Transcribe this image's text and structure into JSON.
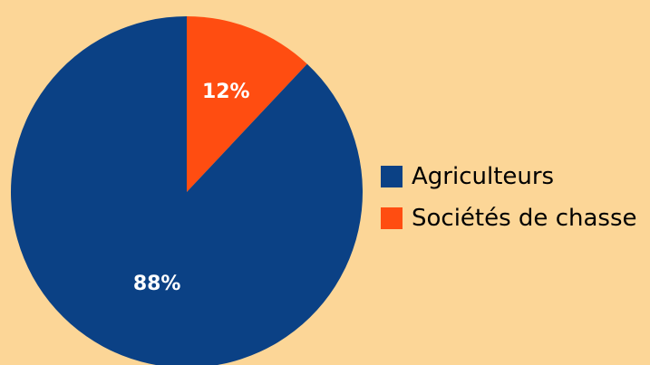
{
  "chart_data": {
    "type": "pie",
    "title": "",
    "categories": [
      "Agriculteurs",
      "Sociétés de chasse"
    ],
    "values": [
      88,
      12
    ],
    "data_labels": [
      "88%",
      "12%"
    ],
    "colors": [
      "#0B4185",
      "#FF4D11"
    ],
    "start_angle": "12 o'clock",
    "direction": "clockwise, Sociétés de chasse first",
    "legend_position": "right"
  },
  "legend": {
    "items": [
      {
        "label": "Agriculteurs",
        "color": "#0B4185"
      },
      {
        "label": "Sociétés de chasse",
        "color": "#FF4D11"
      }
    ]
  },
  "background_color": "#FCD697"
}
